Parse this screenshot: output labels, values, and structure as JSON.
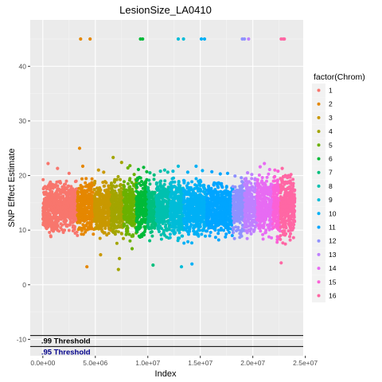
{
  "chart_data": {
    "type": "scatter",
    "title": "LesionSize_LA0410",
    "xlabel": "Index",
    "ylabel": "SNP Effect Estimate",
    "xlim": [
      -1200000,
      24800000
    ],
    "ylim": [
      -13,
      48.5
    ],
    "x_ticks": [
      0,
      5000000,
      10000000,
      15000000,
      20000000,
      25000000
    ],
    "x_tick_labels": [
      "0.0e+00",
      "5.0e+06",
      "1.0e+07",
      "1.5e+07",
      "2.0e+07",
      "2.5e+07"
    ],
    "y_ticks": [
      -10,
      0,
      10,
      20,
      30,
      40
    ],
    "y_tick_labels": [
      "-10",
      "0",
      "10",
      "20",
      "30",
      "40"
    ],
    "grid": true,
    "legend": {
      "title": "factor(Chrom)",
      "position": "right"
    },
    "series": [
      {
        "name": "1",
        "color": "#F8766D",
        "x_start": 0,
        "x_end": 3300000,
        "band": [
          8.3,
          19.3
        ],
        "outliers": [
          [
            500000,
            22.2
          ],
          [
            1400000,
            21.3
          ],
          [
            2500000,
            20.4
          ]
        ],
        "top_hits": []
      },
      {
        "name": "2",
        "color": "#E58700",
        "x_start": 3300000,
        "x_end": 4900000,
        "band": [
          7.7,
          19.5
        ],
        "outliers": [
          [
            3500000,
            25.0
          ],
          [
            3800000,
            21.7
          ],
          [
            4200000,
            3.3
          ]
        ],
        "top_hits": [
          3600000,
          4500000
        ]
      },
      {
        "name": "3",
        "color": "#C99800",
        "x_start": 4900000,
        "x_end": 6500000,
        "band": [
          7.6,
          19.4
        ],
        "outliers": [
          [
            5300000,
            21.0
          ],
          [
            5800000,
            20.6
          ],
          [
            5500000,
            5.5
          ]
        ],
        "top_hits": []
      },
      {
        "name": "4",
        "color": "#A3A500",
        "x_start": 6500000,
        "x_end": 7700000,
        "band": [
          7.2,
          19.8
        ],
        "outliers": [
          [
            6700000,
            23.3
          ],
          [
            7500000,
            22.4
          ],
          [
            7200000,
            2.8
          ],
          [
            7300000,
            4.8
          ]
        ],
        "top_hits": []
      },
      {
        "name": "5",
        "color": "#6BB100",
        "x_start": 7700000,
        "x_end": 8900000,
        "band": [
          7.5,
          19.5
        ],
        "outliers": [
          [
            8100000,
            21.4
          ],
          [
            8300000,
            21.8
          ],
          [
            8500000,
            6.6
          ],
          [
            8700000,
            20.2
          ]
        ],
        "top_hits": []
      },
      {
        "name": "6",
        "color": "#00BA38",
        "x_start": 8900000,
        "x_end": 10000000,
        "band": [
          7.4,
          19.9
        ],
        "outliers": [
          [
            9100000,
            21.1
          ],
          [
            9600000,
            21.5
          ],
          [
            9900000,
            20.7
          ]
        ],
        "top_hits": [
          9300000,
          9500000
        ]
      },
      {
        "name": "7",
        "color": "#00BF7D",
        "x_start": 10000000,
        "x_end": 10800000,
        "band": [
          7.3,
          19.3
        ],
        "outliers": [
          [
            10200000,
            20.5
          ],
          [
            10600000,
            20.1
          ],
          [
            10500000,
            3.6
          ]
        ],
        "top_hits": []
      },
      {
        "name": "8",
        "color": "#00C0AF",
        "x_start": 10800000,
        "x_end": 12100000,
        "band": [
          7.5,
          19.6
        ],
        "outliers": [
          [
            11200000,
            20.8
          ],
          [
            11600000,
            21.0
          ],
          [
            11900000,
            20.6
          ]
        ],
        "top_hits": []
      },
      {
        "name": "9",
        "color": "#00BCD8",
        "x_start": 12100000,
        "x_end": 13400000,
        "band": [
          7.5,
          19.6
        ],
        "outliers": [
          [
            12400000,
            20.8
          ],
          [
            12900000,
            21.7
          ],
          [
            13200000,
            3.3
          ]
        ],
        "top_hits": [
          12900000,
          13400000
        ]
      },
      {
        "name": "10",
        "color": "#00B0F6",
        "x_start": 13400000,
        "x_end": 15600000,
        "band": [
          7.3,
          19.5
        ],
        "outliers": [
          [
            13800000,
            20.6
          ],
          [
            14600000,
            21.7
          ],
          [
            15200000,
            20.9
          ],
          [
            14200000,
            3.8
          ]
        ],
        "top_hits": [
          15100000,
          15400000
        ]
      },
      {
        "name": "11",
        "color": "#00A5FF",
        "x_start": 15600000,
        "x_end": 18100000,
        "band": [
          7.8,
          19.1
        ],
        "outliers": [
          [
            16100000,
            20.7
          ],
          [
            16900000,
            20.3
          ],
          [
            17600000,
            20.4
          ]
        ],
        "top_hits": []
      },
      {
        "name": "12",
        "color": "#8F91FF",
        "x_start": 18100000,
        "x_end": 19200000,
        "band": [
          7.9,
          19.2
        ],
        "outliers": [
          [
            18300000,
            19.9
          ],
          [
            18900000,
            19.6
          ]
        ],
        "top_hits": [
          19000000,
          19200000
        ]
      },
      {
        "name": "13",
        "color": "#BF80FF",
        "x_start": 19200000,
        "x_end": 20400000,
        "band": [
          7.7,
          19.7
        ],
        "outliers": [
          [
            19500000,
            20.5
          ],
          [
            19900000,
            20.2
          ]
        ],
        "top_hits": [
          19600000
        ]
      },
      {
        "name": "14",
        "color": "#E76BF3",
        "x_start": 20400000,
        "x_end": 21900000,
        "band": [
          7.5,
          20.3
        ],
        "outliers": [
          [
            20700000,
            21.6
          ],
          [
            21100000,
            22.2
          ],
          [
            21600000,
            21.1
          ]
        ],
        "top_hits": []
      },
      {
        "name": "15",
        "color": "#FB61D7",
        "x_start": 21900000,
        "x_end": 22600000,
        "band": [
          7.2,
          19.9
        ],
        "outliers": [
          [
            22100000,
            21.0
          ],
          [
            22400000,
            20.8
          ]
        ],
        "top_hits": []
      },
      {
        "name": "16",
        "color": "#FF67A4",
        "x_start": 22600000,
        "x_end": 24000000,
        "band": [
          7.1,
          20.8
        ],
        "outliers": [
          [
            22800000,
            21.3
          ],
          [
            22700000,
            4.0
          ],
          [
            23400000,
            20.0
          ]
        ],
        "top_hits": [
          22700000,
          22900000,
          23000000
        ]
      }
    ],
    "top_hit_y": 45,
    "thresholds": [
      {
        "label": ".99 Threshold",
        "y": -9.3,
        "line_color": "#000000",
        "text_color": "#000000"
      },
      {
        "label": ".95 Threshold",
        "y": -11.3,
        "line_color": "#000000",
        "text_color": "#00008B"
      }
    ]
  }
}
